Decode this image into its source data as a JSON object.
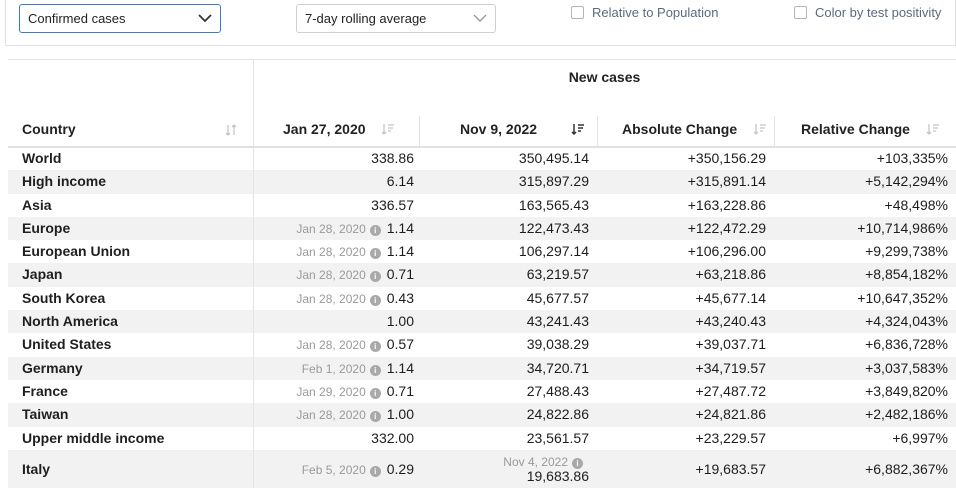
{
  "controls": {
    "metric_select": "Confirmed cases",
    "interval_select": "7-day rolling average",
    "relative_population": "Relative to Population",
    "color_positivity": "Color by test positivity"
  },
  "table": {
    "group_header": "New cases",
    "headers": {
      "country": "Country",
      "start": "Jan 27, 2020",
      "end": "Nov 9, 2022",
      "abs": "Absolute Change",
      "rel": "Relative Change"
    },
    "rows": [
      {
        "country": "World",
        "start_note": "",
        "start": "338.86",
        "end_note": "",
        "end": "350,495.14",
        "abs": "+350,156.29",
        "rel": "+103,335%"
      },
      {
        "country": "High income",
        "start_note": "",
        "start": "6.14",
        "end_note": "",
        "end": "315,897.29",
        "abs": "+315,891.14",
        "rel": "+5,142,294%"
      },
      {
        "country": "Asia",
        "start_note": "",
        "start": "336.57",
        "end_note": "",
        "end": "163,565.43",
        "abs": "+163,228.86",
        "rel": "+48,498%"
      },
      {
        "country": "Europe",
        "start_note": "Jan 28, 2020",
        "start": "1.14",
        "end_note": "",
        "end": "122,473.43",
        "abs": "+122,472.29",
        "rel": "+10,714,986%"
      },
      {
        "country": "European Union",
        "start_note": "Jan 28, 2020",
        "start": "1.14",
        "end_note": "",
        "end": "106,297.14",
        "abs": "+106,296.00",
        "rel": "+9,299,738%"
      },
      {
        "country": "Japan",
        "start_note": "Jan 28, 2020",
        "start": "0.71",
        "end_note": "",
        "end": "63,219.57",
        "abs": "+63,218.86",
        "rel": "+8,854,182%"
      },
      {
        "country": "South Korea",
        "start_note": "Jan 28, 2020",
        "start": "0.43",
        "end_note": "",
        "end": "45,677.57",
        "abs": "+45,677.14",
        "rel": "+10,647,352%"
      },
      {
        "country": "North America",
        "start_note": "",
        "start": "1.00",
        "end_note": "",
        "end": "43,241.43",
        "abs": "+43,240.43",
        "rel": "+4,324,043%"
      },
      {
        "country": "United States",
        "start_note": "Jan 28, 2020",
        "start": "0.57",
        "end_note": "",
        "end": "39,038.29",
        "abs": "+39,037.71",
        "rel": "+6,836,728%"
      },
      {
        "country": "Germany",
        "start_note": "Feb 1, 2020",
        "start": "1.14",
        "end_note": "",
        "end": "34,720.71",
        "abs": "+34,719.57",
        "rel": "+3,037,583%"
      },
      {
        "country": "France",
        "start_note": "Jan 29, 2020",
        "start": "0.71",
        "end_note": "",
        "end": "27,488.43",
        "abs": "+27,487.72",
        "rel": "+3,849,820%"
      },
      {
        "country": "Taiwan",
        "start_note": "Jan 28, 2020",
        "start": "1.00",
        "end_note": "",
        "end": "24,822.86",
        "abs": "+24,821.86",
        "rel": "+2,482,186%"
      },
      {
        "country": "Upper middle income",
        "start_note": "",
        "start": "332.00",
        "end_note": "",
        "end": "23,561.57",
        "abs": "+23,229.57",
        "rel": "+6,997%"
      },
      {
        "country": "Italy",
        "start_note": "Feb 5, 2020",
        "start": "0.29",
        "end_note": "Nov 4, 2022",
        "end": "19,683.86",
        "abs": "+19,683.57",
        "rel": "+6,882,367%"
      }
    ]
  },
  "icons": {
    "dropdown": "chevron-down-icon",
    "sort": "sort-icon",
    "info": "info-icon"
  },
  "colors": {
    "accent": "#3b7bd3",
    "row_alt": "#f2f2f2"
  }
}
